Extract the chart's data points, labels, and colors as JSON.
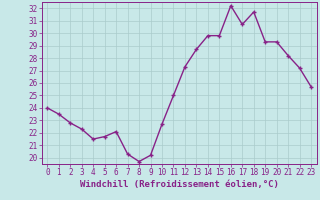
{
  "x": [
    0,
    1,
    2,
    3,
    4,
    5,
    6,
    7,
    8,
    9,
    10,
    11,
    12,
    13,
    14,
    15,
    16,
    17,
    18,
    19,
    20,
    21,
    22,
    23
  ],
  "y": [
    24.0,
    23.5,
    22.8,
    22.3,
    21.5,
    21.7,
    22.1,
    20.3,
    19.7,
    20.2,
    22.7,
    25.0,
    27.3,
    28.7,
    29.8,
    29.8,
    32.2,
    30.7,
    31.7,
    29.3,
    29.3,
    28.2,
    27.2,
    25.7
  ],
  "line_color": "#882288",
  "marker": "+",
  "marker_size": 3,
  "bg_color": "#c8e8e8",
  "grid_color": "#aacccc",
  "xlabel": "Windchill (Refroidissement éolien,°C)",
  "ylim": [
    19.5,
    32.5
  ],
  "yticks": [
    20,
    21,
    22,
    23,
    24,
    25,
    26,
    27,
    28,
    29,
    30,
    31,
    32
  ],
  "xlim": [
    -0.5,
    23.5
  ],
  "xticks": [
    0,
    1,
    2,
    3,
    4,
    5,
    6,
    7,
    8,
    9,
    10,
    11,
    12,
    13,
    14,
    15,
    16,
    17,
    18,
    19,
    20,
    21,
    22,
    23
  ],
  "tick_label_fontsize": 5.5,
  "xlabel_fontsize": 6.5,
  "line_width": 1.0
}
